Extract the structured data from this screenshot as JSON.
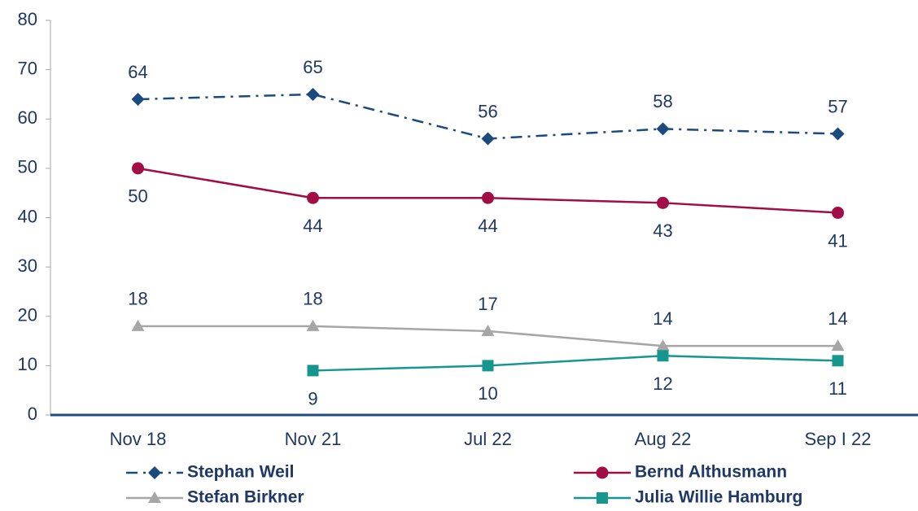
{
  "chart_data": {
    "type": "line",
    "categories": [
      "Nov 18",
      "Nov 21",
      "Jul 22",
      "Aug 22",
      "Sep I 22"
    ],
    "ylim": [
      0,
      80
    ],
    "yticks": [
      0,
      10,
      20,
      30,
      40,
      50,
      60,
      70,
      80
    ],
    "series": [
      {
        "name": "Stephan Weil",
        "color": "#1a4a7e",
        "marker": "diamond",
        "line_style": "dashdot",
        "values": [
          64,
          65,
          56,
          58,
          57
        ]
      },
      {
        "name": "Bernd Althusmann",
        "color": "#a10e46",
        "marker": "circle",
        "line_style": "solid",
        "values": [
          50,
          44,
          44,
          43,
          41
        ]
      },
      {
        "name": "Stefan Birkner",
        "color": "#a6a6a6",
        "marker": "triangle",
        "line_style": "solid",
        "values": [
          18,
          18,
          17,
          14,
          14
        ]
      },
      {
        "name": "Julia Willie Hamburg",
        "color": "#17968f",
        "marker": "square",
        "line_style": "solid",
        "values": [
          null,
          9,
          10,
          12,
          11
        ]
      }
    ]
  }
}
